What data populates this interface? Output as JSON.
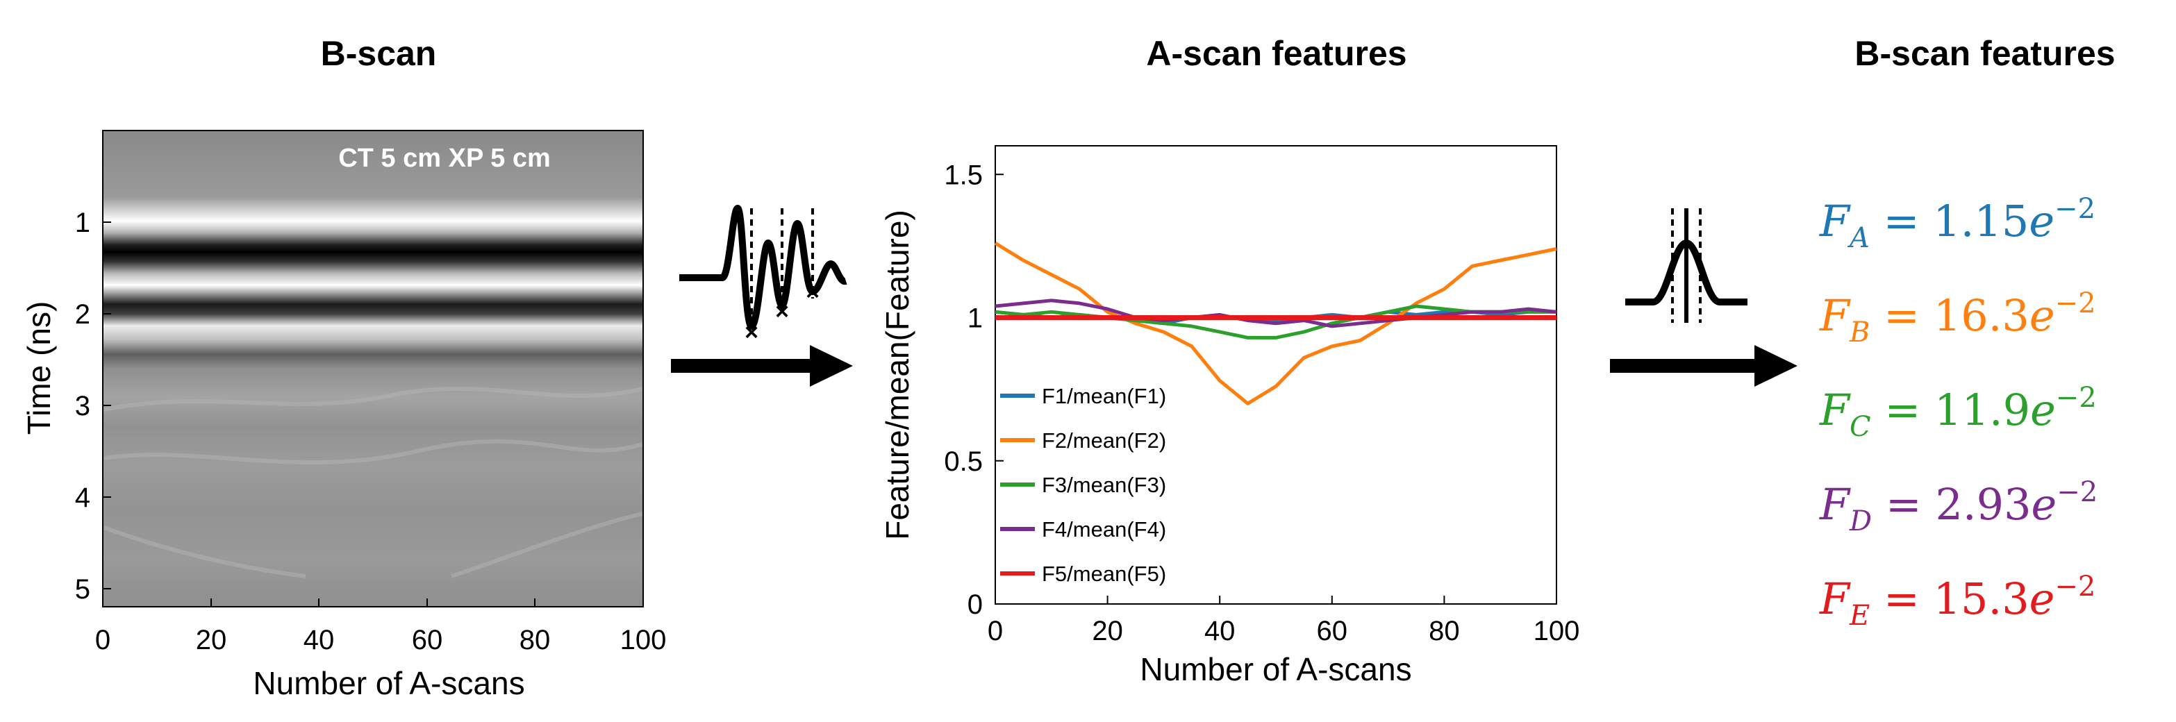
{
  "panels": {
    "bscan": {
      "title": "B-scan",
      "overlay": "CT 5 cm XP 5 cm",
      "xlabel": "Number of A-scans",
      "ylabel": "Time (ns)",
      "xticks": [
        "0",
        "20",
        "40",
        "60",
        "80",
        "100"
      ],
      "yticks": [
        "1",
        "2",
        "3",
        "4",
        "5"
      ]
    },
    "ascan_features": {
      "title": "A-scan features"
    },
    "bscan_features": {
      "title": "B-scan features",
      "equations": [
        {
          "letter": "F",
          "sub": "A",
          "equals": "=",
          "mantissa": "1.15",
          "base": "e",
          "exp": "−2",
          "color": "#1f77b4"
        },
        {
          "letter": "F",
          "sub": "B",
          "equals": "=",
          "mantissa": "16.3",
          "base": "e",
          "exp": "−2",
          "color": "#ff7f0e"
        },
        {
          "letter": "F",
          "sub": "C",
          "equals": "=",
          "mantissa": "11.9",
          "base": "e",
          "exp": "−2",
          "color": "#2ca02c"
        },
        {
          "letter": "F",
          "sub": "D",
          "equals": "=",
          "mantissa": "2.93",
          "base": "e",
          "exp": "−2",
          "color": "#7b2d8e"
        },
        {
          "letter": "F",
          "sub": "E",
          "equals": "=",
          "mantissa": "15.3",
          "base": "e",
          "exp": "−2",
          "color": "#e41a1c"
        }
      ]
    }
  },
  "chart_data": {
    "type": "line",
    "title": "A-scan features",
    "xlabel": "Number of A-scans",
    "ylabel": "Feature/mean(Feature)",
    "xlim": [
      0,
      100
    ],
    "ylim": [
      0,
      1.6
    ],
    "xticks": [
      "0",
      "20",
      "40",
      "60",
      "80",
      "100"
    ],
    "yticks": [
      "0",
      "0.5",
      "1",
      "1.5"
    ],
    "grid": false,
    "legend_position": "left",
    "x": [
      0,
      5,
      10,
      15,
      20,
      25,
      30,
      35,
      40,
      45,
      50,
      55,
      60,
      65,
      70,
      75,
      80,
      85,
      90,
      95,
      100
    ],
    "series": [
      {
        "name": "F1/mean(F1)",
        "color": "#1f77b4",
        "values": [
          1.02,
          1.01,
          1.0,
          1.01,
          1.0,
          0.99,
          0.98,
          1.0,
          1.0,
          1.0,
          0.99,
          1.0,
          1.01,
          1.0,
          1.02,
          1.01,
          1.02,
          1.02,
          1.01,
          1.02,
          1.02
        ]
      },
      {
        "name": "F2/mean(F2)",
        "color": "#ff7f0e",
        "values": [
          1.26,
          1.2,
          1.15,
          1.1,
          1.02,
          0.98,
          0.95,
          0.9,
          0.78,
          0.7,
          0.76,
          0.86,
          0.9,
          0.92,
          0.98,
          1.05,
          1.1,
          1.18,
          1.2,
          1.22,
          1.24
        ]
      },
      {
        "name": "F3/mean(F3)",
        "color": "#2ca02c",
        "values": [
          1.02,
          1.01,
          1.02,
          1.01,
          1.0,
          0.99,
          0.98,
          0.97,
          0.95,
          0.93,
          0.93,
          0.95,
          0.98,
          1.0,
          1.02,
          1.04,
          1.03,
          1.02,
          1.02,
          1.02,
          1.02
        ]
      },
      {
        "name": "F4/mean(F4)",
        "color": "#7b2d8e",
        "values": [
          1.04,
          1.05,
          1.06,
          1.05,
          1.03,
          1.0,
          0.99,
          1.0,
          1.01,
          0.99,
          0.98,
          0.99,
          0.97,
          0.98,
          0.99,
          1.0,
          1.01,
          1.02,
          1.02,
          1.03,
          1.02
        ]
      },
      {
        "name": "F5/mean(F5)",
        "color": "#e41a1c",
        "values": [
          1.0,
          1.0,
          1.0,
          1.0,
          1.0,
          1.0,
          1.0,
          1.0,
          1.0,
          1.0,
          1.0,
          1.0,
          1.0,
          1.0,
          1.0,
          1.0,
          1.0,
          1.0,
          1.0,
          1.0,
          1.0
        ]
      }
    ]
  }
}
